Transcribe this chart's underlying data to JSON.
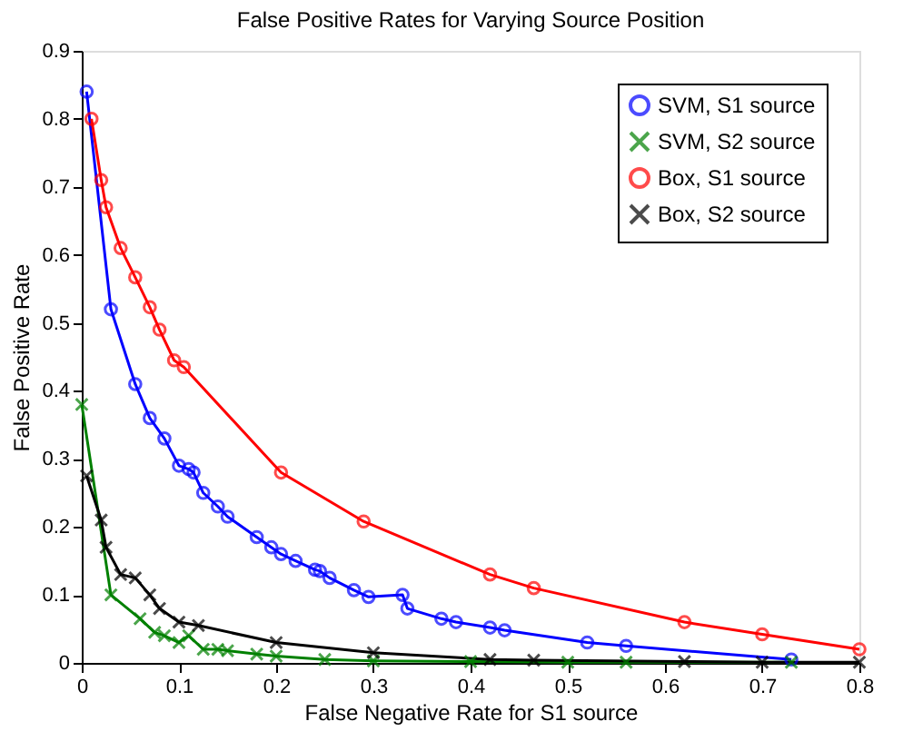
{
  "chart_data": {
    "type": "line",
    "title": "False Positive Rates for Varying Source Position",
    "xlabel": "False Negative Rate for S1 source",
    "ylabel": "False Positive Rate",
    "xlim": [
      0,
      0.8
    ],
    "xticks": [
      0,
      0.1,
      0.2,
      0.3,
      0.4,
      0.5,
      0.6,
      0.7,
      0.8
    ],
    "ylim": [
      0,
      0.9
    ],
    "yticks": [
      0,
      0.1,
      0.2,
      0.3,
      0.4,
      0.5,
      0.6,
      0.7,
      0.8,
      0.9
    ],
    "legend": "top right",
    "grid": false,
    "line_style": "solid",
    "series": [
      {
        "name": "SVM, S1 source",
        "color": "#0000ff",
        "marker": "circle",
        "x": [
          0.005,
          0.03,
          0.055,
          0.07,
          0.085,
          0.1,
          0.11,
          0.115,
          0.125,
          0.14,
          0.15,
          0.18,
          0.195,
          0.205,
          0.22,
          0.24,
          0.245,
          0.255,
          0.28,
          0.295,
          0.33,
          0.335,
          0.37,
          0.385,
          0.42,
          0.435,
          0.52,
          0.56,
          0.73
        ],
        "values": [
          0.84,
          0.52,
          0.41,
          0.36,
          0.33,
          0.29,
          0.285,
          0.28,
          0.25,
          0.23,
          0.215,
          0.185,
          0.17,
          0.16,
          0.15,
          0.137,
          0.135,
          0.125,
          0.107,
          0.097,
          0.1,
          0.08,
          0.065,
          0.06,
          0.052,
          0.048,
          0.03,
          0.025,
          0.005
        ]
      },
      {
        "name": "SVM, S2 source",
        "color": "#008000",
        "marker": "cross",
        "x": [
          0.0,
          0.03,
          0.06,
          0.075,
          0.085,
          0.1,
          0.11,
          0.125,
          0.14,
          0.15,
          0.18,
          0.2,
          0.25,
          0.3,
          0.4,
          0.5,
          0.56,
          0.73
        ],
        "values": [
          0.38,
          0.1,
          0.065,
          0.045,
          0.04,
          0.03,
          0.04,
          0.02,
          0.02,
          0.018,
          0.013,
          0.01,
          0.005,
          0.003,
          0.002,
          0.001,
          0.001,
          0.001
        ]
      },
      {
        "name": "Box, S1 source",
        "color": "#ff0000",
        "marker": "circle",
        "x": [
          0.01,
          0.02,
          0.025,
          0.04,
          0.055,
          0.07,
          0.08,
          0.095,
          0.105,
          0.205,
          0.29,
          0.42,
          0.465,
          0.62,
          0.7,
          0.8
        ],
        "values": [
          0.8,
          0.71,
          0.67,
          0.61,
          0.567,
          0.523,
          0.49,
          0.445,
          0.435,
          0.28,
          0.208,
          0.13,
          0.11,
          0.06,
          0.042,
          0.02
        ]
      },
      {
        "name": "Box, S2 source",
        "color": "#000000",
        "marker": "cross",
        "x": [
          0.005,
          0.02,
          0.025,
          0.04,
          0.055,
          0.07,
          0.08,
          0.1,
          0.12,
          0.2,
          0.3,
          0.42,
          0.465,
          0.62,
          0.7,
          0.8
        ],
        "values": [
          0.275,
          0.21,
          0.17,
          0.13,
          0.125,
          0.1,
          0.08,
          0.06,
          0.055,
          0.03,
          0.015,
          0.005,
          0.004,
          0.002,
          0.001,
          0.001
        ]
      }
    ]
  }
}
